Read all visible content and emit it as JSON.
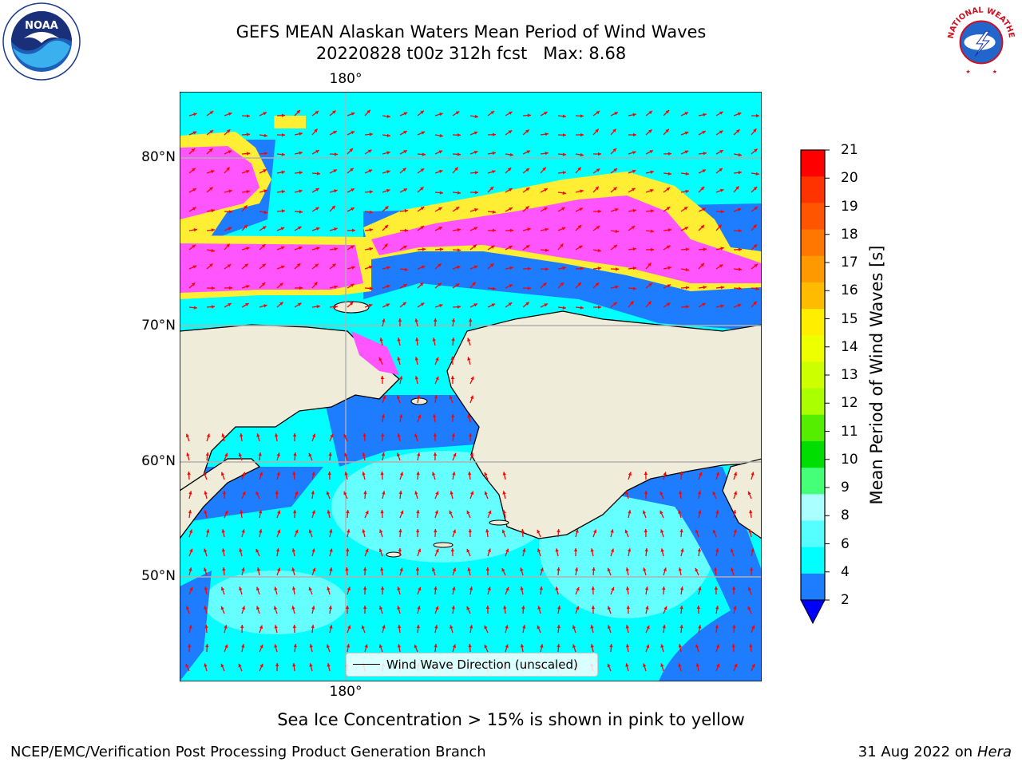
{
  "title": {
    "line1": "GEFS MEAN Alaskan Waters Mean Period of Wind Waves",
    "line2_date": "20220828 t00z 312h fcst",
    "line2_max": "Max: 8.68"
  },
  "map": {
    "lon_label_top": "180°",
    "lon_label_bottom": "180°",
    "lat_labels": [
      "80°N",
      "70°N",
      "60°N",
      "50°N"
    ],
    "legend_label": "Wind Wave Direction (unscaled)",
    "colors": {
      "land": "#efedd9",
      "ocean_2_4": "#1e7cff",
      "ocean_4_6": "#00ffff",
      "ocean_6_8": "#66ffff",
      "ice_pink": "#ff55ff",
      "ice_yellow": "#ffee33",
      "arrow": "#ff0000",
      "grid": "#b0b0b0"
    }
  },
  "colorbar": {
    "label": "Mean Period of Wind Waves [s]",
    "ticks": [
      "21",
      "20",
      "19",
      "18",
      "17",
      "16",
      "15",
      "14",
      "13",
      "12",
      "11",
      "10",
      "9",
      "8",
      "6",
      "4",
      "2"
    ],
    "colors_top_to_bottom": [
      "#ff0000",
      "#ff3300",
      "#ff5500",
      "#ff7700",
      "#ff9900",
      "#ffbb00",
      "#ffee00",
      "#eeff00",
      "#ccff00",
      "#aaff00",
      "#55ee00",
      "#00dd00",
      "#44ff77",
      "#aaffff",
      "#55ffff",
      "#00ffff",
      "#1e7cff"
    ],
    "extend_color": "#0000ff"
  },
  "note": "Sea Ice Concentration > 15% is shown in pink to yellow",
  "footer": {
    "left": "NCEP/EMC/Verification Post Processing Product Generation Branch",
    "right_date": "31 Aug 2022 on",
    "right_machine": "Hera"
  },
  "logos": {
    "noaa_text": "NOAA",
    "nws_text": "NATIONAL WEATHER SERVICE"
  }
}
